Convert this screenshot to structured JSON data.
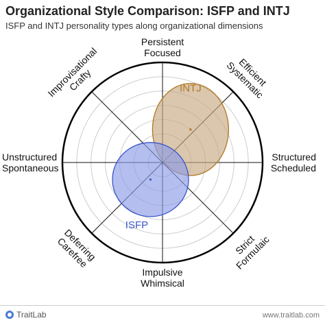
{
  "chart_data": {
    "type": "radar-ellipse",
    "title": "Organizational Style Comparison: ISFP and INTJ",
    "subtitle": "ISFP and INTJ personality types along organizational dimensions",
    "axes": [
      {
        "angle_deg": 90,
        "label": [
          "Persistent",
          "Focused"
        ]
      },
      {
        "angle_deg": 45,
        "label": [
          "Efficient",
          "Systematic"
        ]
      },
      {
        "angle_deg": 0,
        "label": [
          "Structured",
          "Scheduled"
        ]
      },
      {
        "angle_deg": -45,
        "label": [
          "Strict",
          "Formulaic"
        ]
      },
      {
        "angle_deg": -90,
        "label": [
          "Impulsive",
          "Whimsical"
        ]
      },
      {
        "angle_deg": -135,
        "label": [
          "Deferring",
          "Carefree"
        ]
      },
      {
        "angle_deg": 180,
        "label": [
          "Unstructured",
          "Spontaneous"
        ]
      },
      {
        "angle_deg": 135,
        "label": [
          "Improvisational",
          "Crafty"
        ]
      }
    ],
    "rings": 7,
    "range": [
      -1,
      1
    ],
    "series": [
      {
        "name": "INTJ",
        "cx": 0.28,
        "cy": 0.33,
        "rx": 0.38,
        "ry": 0.46,
        "fill": "#c8a882",
        "stroke": "#b07820",
        "label_color": "#b07820"
      },
      {
        "name": "ISFP",
        "cx": -0.12,
        "cy": -0.17,
        "rx": 0.38,
        "ry": 0.37,
        "fill": "#8c9ce8",
        "stroke": "#3a55c8",
        "label_color": "#3a55c8"
      }
    ]
  },
  "footer": {
    "brand": "TraitLab",
    "url": "www.traitlab.com"
  },
  "colors": {
    "axis": "#111111",
    "ring": "#cccccc",
    "outer_ring": "#000000"
  }
}
